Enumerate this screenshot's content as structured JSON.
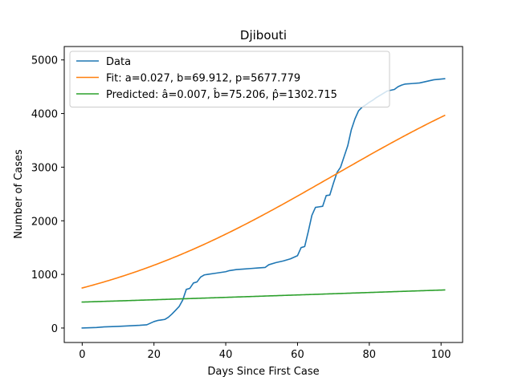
{
  "chart_data": {
    "type": "line",
    "title": "Djibouti",
    "xlabel": "Days Since First Case",
    "ylabel": "Number of Cases",
    "xlim": [
      -5,
      106
    ],
    "ylim": [
      -270,
      5250
    ],
    "xticks": [
      0,
      20,
      40,
      60,
      80,
      100
    ],
    "yticks": [
      0,
      1000,
      2000,
      3000,
      4000,
      5000
    ],
    "grid": false,
    "legend_position": "top-left",
    "series": [
      {
        "name": "Data",
        "color": "#1f77b4",
        "x": [
          0,
          4,
          6,
          10,
          16,
          18,
          19,
          20,
          21,
          22,
          23,
          24,
          25,
          26,
          27,
          28,
          29,
          30,
          31,
          32,
          33,
          34,
          35,
          37,
          40,
          41,
          43,
          45,
          47,
          49,
          51,
          52,
          54,
          56,
          58,
          60,
          61,
          62,
          63,
          64,
          65,
          66,
          67,
          68,
          69,
          70,
          71,
          72,
          73,
          74,
          75,
          76,
          77,
          78,
          79,
          80,
          81,
          82,
          84,
          85,
          87,
          88,
          89,
          90,
          92,
          94,
          96,
          98,
          101
        ],
        "y": [
          0,
          10,
          20,
          30,
          50,
          60,
          90,
          120,
          140,
          150,
          160,
          200,
          260,
          330,
          400,
          520,
          720,
          740,
          840,
          860,
          950,
          990,
          1000,
          1020,
          1050,
          1070,
          1090,
          1100,
          1110,
          1120,
          1130,
          1180,
          1220,
          1250,
          1290,
          1350,
          1500,
          1520,
          1800,
          2100,
          2250,
          2260,
          2270,
          2470,
          2480,
          2700,
          2900,
          3000,
          3200,
          3400,
          3700,
          3900,
          4050,
          4120,
          4160,
          4210,
          4250,
          4300,
          4380,
          4420,
          4450,
          4500,
          4530,
          4550,
          4560,
          4570,
          4600,
          4630,
          4650
        ]
      },
      {
        "name": "Fit: a=0.027, b=69.912, p=5677.779",
        "color": "#ff7f0e",
        "model": "logistic",
        "params": {
          "a": 0.027,
          "b": 69.912,
          "p": 5677.779
        },
        "x_range": [
          0,
          101
        ]
      },
      {
        "name": "Predicted: â=0.007, b̂=75.206, p̂=1302.715",
        "color": "#2ca02c",
        "model": "logistic",
        "params": {
          "a": 0.007,
          "b": 75.206,
          "p": 1302.715
        },
        "x_range": [
          0,
          101
        ]
      }
    ]
  }
}
